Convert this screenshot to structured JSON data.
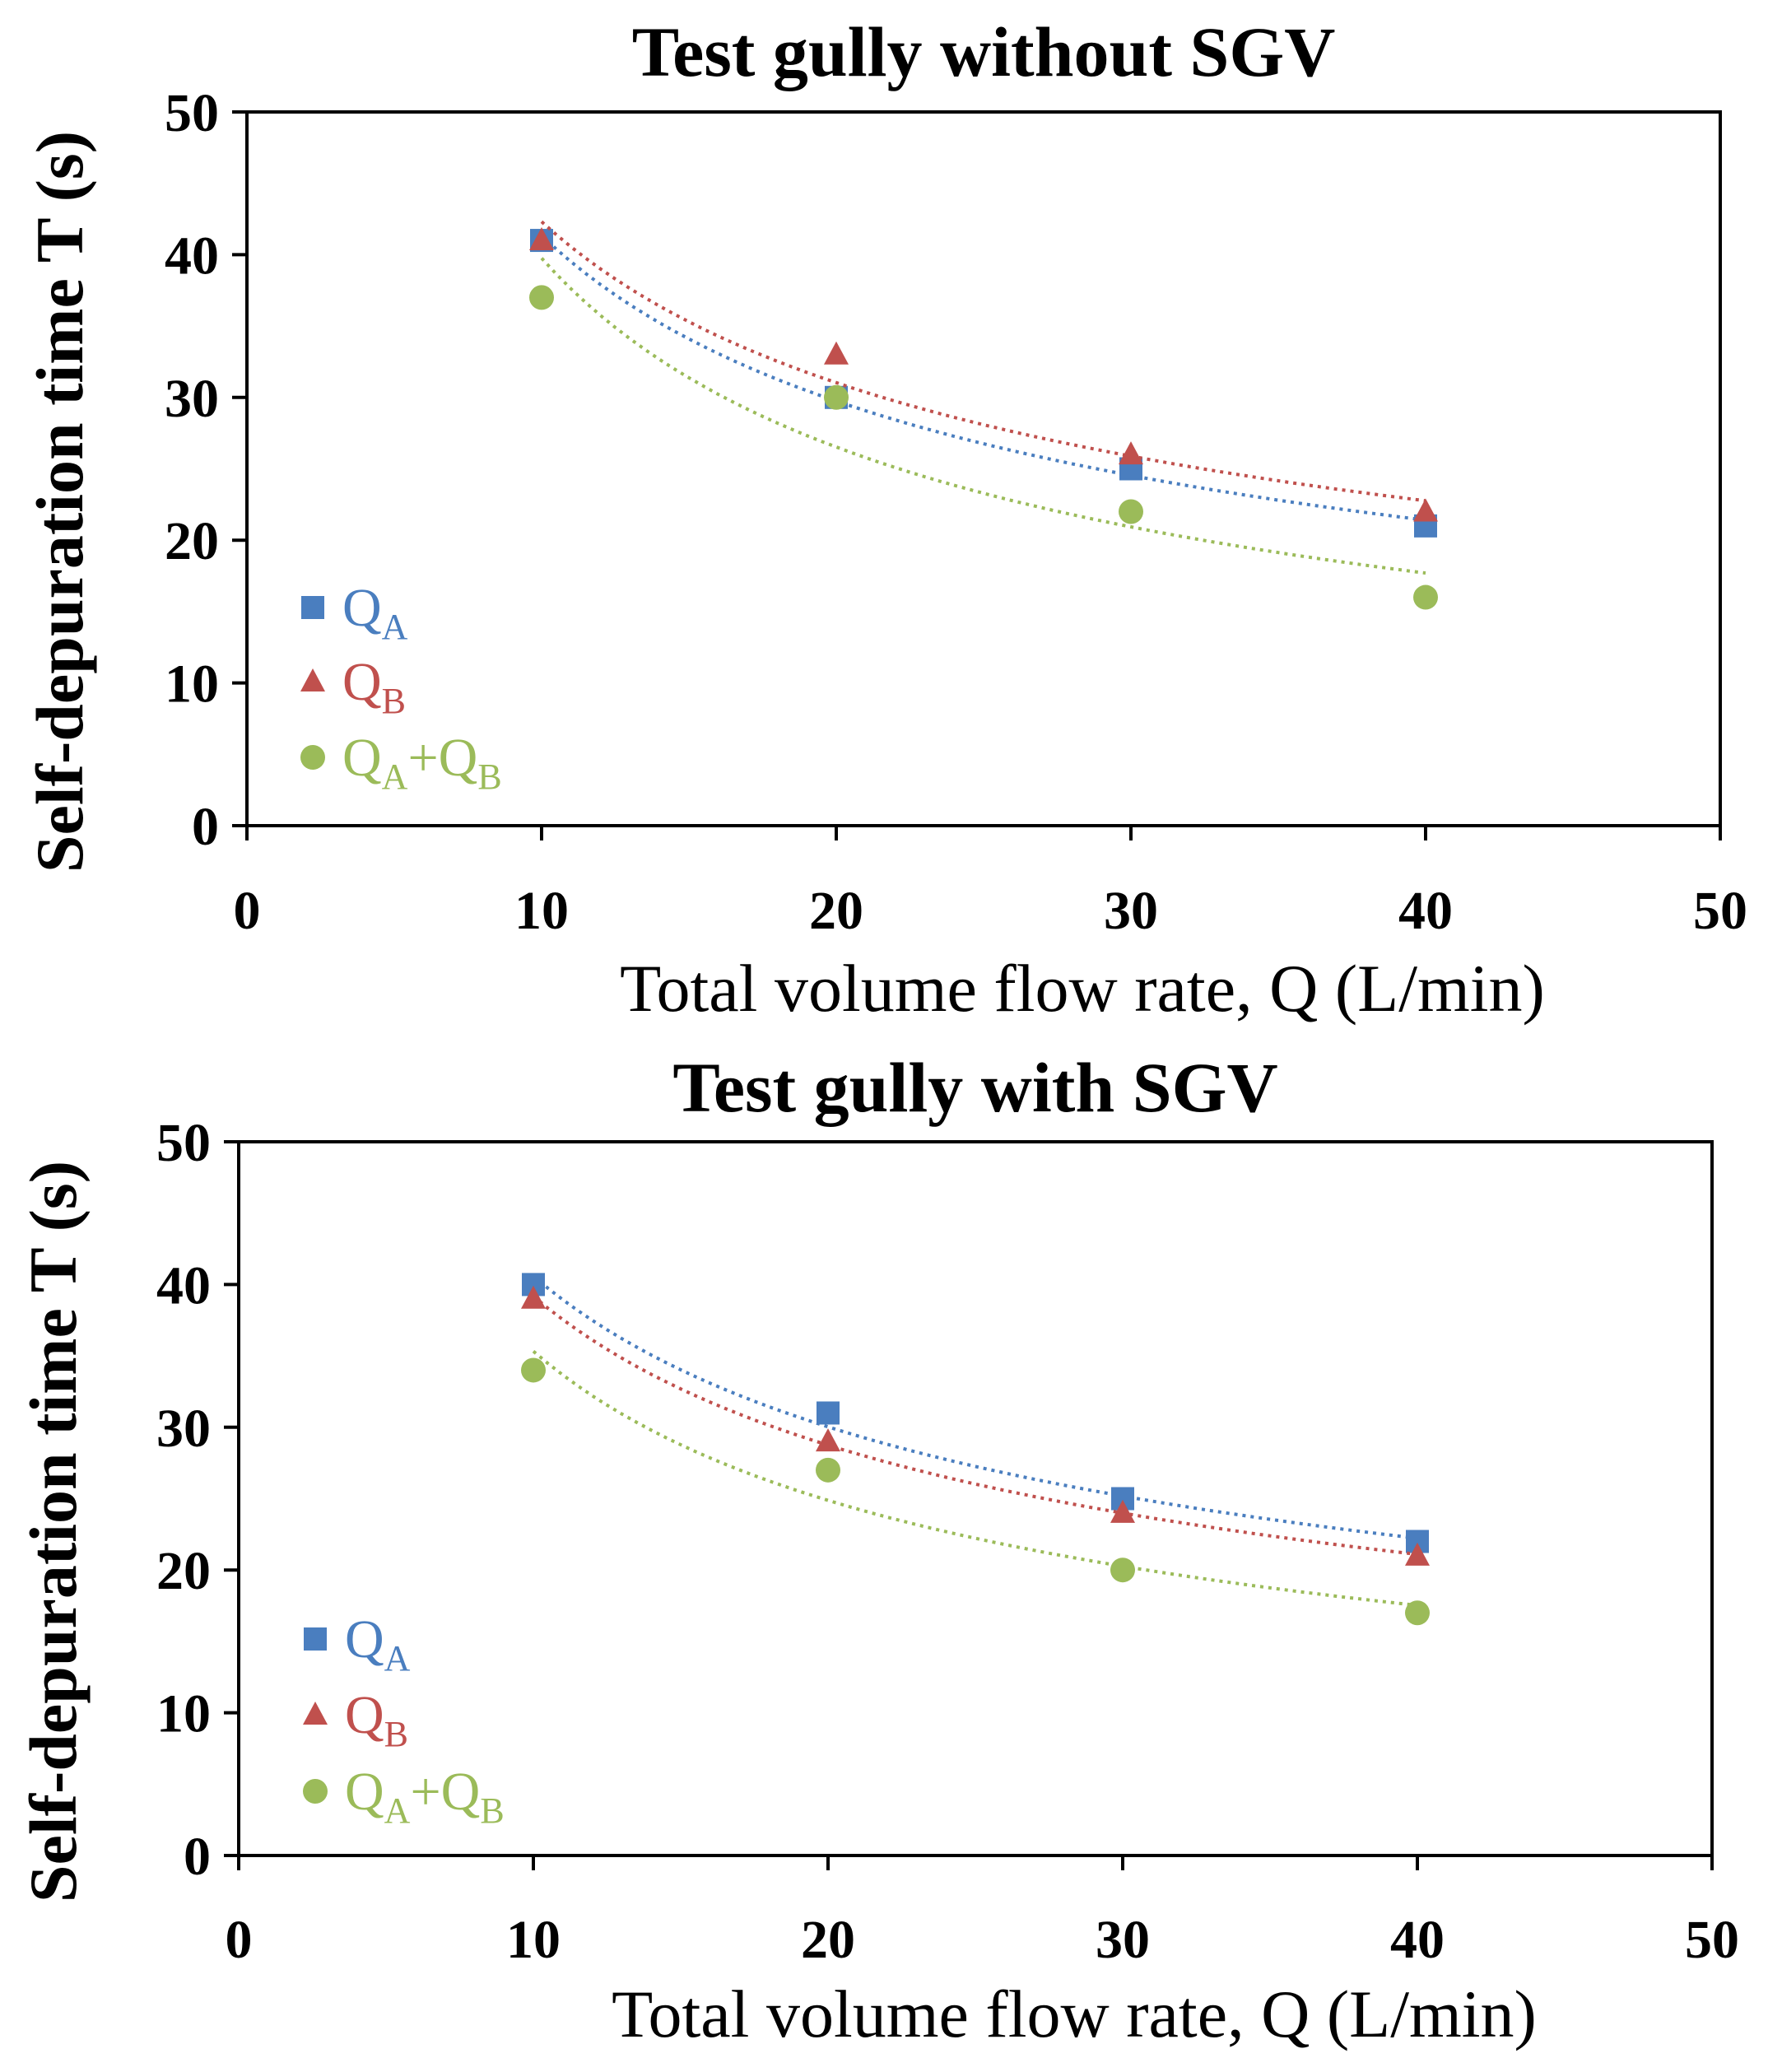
{
  "chart_data": [
    {
      "type": "scatter",
      "title": "Test gully without SGV",
      "xlabel": "Total volume  flow rate, Q (L/min)",
      "ylabel": "Self-depuration time T (s)",
      "xlim": [
        0,
        50
      ],
      "ylim": [
        0,
        50
      ],
      "xticks": [
        "0",
        "10",
        "20",
        "30",
        "40",
        "50"
      ],
      "yticks": [
        "0",
        "10",
        "20",
        "30",
        "40",
        "50"
      ],
      "grid": false,
      "legend_position": "bottom-left",
      "trendline": "power, dotted",
      "series": [
        {
          "name": "QA",
          "label_main": "Q",
          "label_sub": "A",
          "marker": "square",
          "color": "#4a7ebf",
          "x": [
            10,
            20,
            30,
            40
          ],
          "y": [
            41,
            30,
            25,
            21
          ]
        },
        {
          "name": "QB",
          "label_main": "Q",
          "label_sub": "B",
          "marker": "triangle",
          "color": "#c0504d",
          "x": [
            10,
            20,
            30,
            40
          ],
          "y": [
            41,
            33,
            26,
            22
          ]
        },
        {
          "name": "QA+QB",
          "label_main": "Q",
          "label_sub": "A",
          "label_mid": "+Q",
          "label_sub2": "B",
          "marker": "circle",
          "color": "#9bbb59",
          "x": [
            10,
            20,
            30,
            40
          ],
          "y": [
            37,
            30,
            22,
            16
          ]
        }
      ]
    },
    {
      "type": "scatter",
      "title": "Test gully with SGV",
      "xlabel": "Total volume  flow rate, Q (L/min)",
      "ylabel": "Self-depuration time T (s)",
      "xlim": [
        0,
        50
      ],
      "ylim": [
        0,
        50
      ],
      "xticks": [
        "0",
        "10",
        "20",
        "30",
        "40",
        "50"
      ],
      "yticks": [
        "0",
        "10",
        "20",
        "30",
        "40",
        "50"
      ],
      "grid": false,
      "legend_position": "bottom-left",
      "trendline": "power, dotted",
      "series": [
        {
          "name": "QA",
          "label_main": "Q",
          "label_sub": "A",
          "marker": "square",
          "color": "#4a7ebf",
          "x": [
            10,
            20,
            30,
            40
          ],
          "y": [
            40,
            31,
            25,
            22
          ]
        },
        {
          "name": "QB",
          "label_main": "Q",
          "label_sub": "B",
          "marker": "triangle",
          "color": "#c0504d",
          "x": [
            10,
            20,
            30,
            40
          ],
          "y": [
            39,
            29,
            24,
            21
          ]
        },
        {
          "name": "QA+QB",
          "label_main": "Q",
          "label_sub": "A",
          "label_mid": "+Q",
          "label_sub2": "B",
          "marker": "circle",
          "color": "#9bbb59",
          "x": [
            10,
            20,
            30,
            40
          ],
          "y": [
            34,
            27,
            20,
            17
          ]
        }
      ]
    }
  ]
}
